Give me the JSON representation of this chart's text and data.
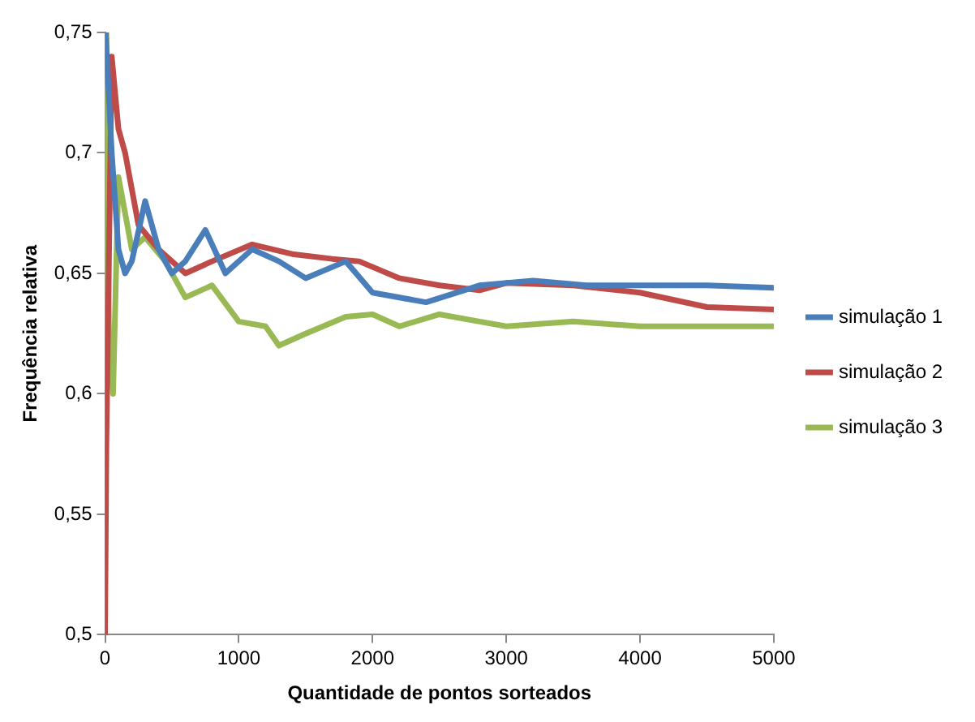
{
  "chart_data": {
    "type": "line",
    "xlabel": "Quantidade de pontos sorteados",
    "ylabel": "Frequência relativa",
    "xlim": [
      0,
      5000
    ],
    "xticks": [
      0,
      1000,
      2000,
      3000,
      4000,
      5000
    ],
    "ylim": [
      0.5,
      0.75
    ],
    "yticks": [
      {
        "value": 0.5,
        "label": "0,5"
      },
      {
        "value": 0.55,
        "label": "0,55"
      },
      {
        "value": 0.6,
        "label": "0,6"
      },
      {
        "value": 0.65,
        "label": "0,65"
      },
      {
        "value": 0.7,
        "label": "0,7"
      },
      {
        "value": 0.75,
        "label": "0,75"
      }
    ],
    "grid": false,
    "legend": "right",
    "marker": "none",
    "line_style": "solid",
    "series": [
      {
        "name": "simulação 1",
        "color": "#4a7ebb",
        "x": [
          5,
          50,
          100,
          150,
          200,
          300,
          400,
          500,
          600,
          750,
          900,
          1100,
          1300,
          1500,
          1800,
          2000,
          2400,
          2800,
          3200,
          3600,
          4000,
          4500,
          5000
        ],
        "values": [
          0.75,
          0.7,
          0.66,
          0.65,
          0.655,
          0.68,
          0.66,
          0.65,
          0.655,
          0.668,
          0.65,
          0.66,
          0.655,
          0.648,
          0.655,
          0.642,
          0.638,
          0.645,
          0.647,
          0.645,
          0.645,
          0.645,
          0.644
        ]
      },
      {
        "name": "simulação 2",
        "color": "#be4b48",
        "x": [
          0,
          10,
          50,
          100,
          150,
          250,
          400,
          600,
          800,
          1100,
          1400,
          1700,
          1900,
          2200,
          2500,
          2800,
          3000,
          3500,
          4000,
          4500,
          5000
        ],
        "values": [
          0.5,
          0.58,
          0.74,
          0.71,
          0.7,
          0.67,
          0.66,
          0.65,
          0.655,
          0.662,
          0.658,
          0.656,
          0.655,
          0.648,
          0.645,
          0.643,
          0.646,
          0.645,
          0.642,
          0.636,
          0.635
        ]
      },
      {
        "name": "simulação 3",
        "color": "#98b954",
        "x": [
          0,
          10,
          30,
          60,
          100,
          200,
          300,
          450,
          600,
          800,
          1000,
          1200,
          1300,
          1500,
          1800,
          2000,
          2200,
          2500,
          2800,
          3000,
          3500,
          4000,
          4500,
          5000
        ],
        "values": [
          0.58,
          0.75,
          0.62,
          0.6,
          0.69,
          0.66,
          0.665,
          0.655,
          0.64,
          0.645,
          0.63,
          0.628,
          0.62,
          0.625,
          0.632,
          0.633,
          0.628,
          0.633,
          0.63,
          0.628,
          0.63,
          0.628,
          0.628,
          0.628
        ]
      }
    ]
  }
}
